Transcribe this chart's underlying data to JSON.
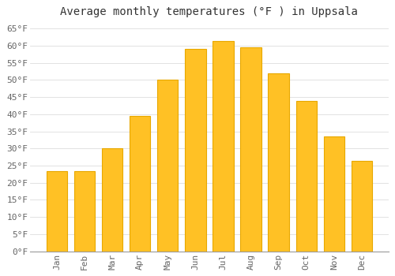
{
  "title": "Average monthly temperatures (°F ) in Uppsala",
  "months": [
    "Jan",
    "Feb",
    "Mar",
    "Apr",
    "May",
    "Jun",
    "Jul",
    "Aug",
    "Sep",
    "Oct",
    "Nov",
    "Dec"
  ],
  "values": [
    23.5,
    23.5,
    30.0,
    39.5,
    50.0,
    59.0,
    61.5,
    59.5,
    52.0,
    44.0,
    33.5,
    26.5
  ],
  "bar_color": "#FFC125",
  "bar_edge_color": "#E8A800",
  "background_color": "#FFFFFF",
  "grid_color": "#DDDDDD",
  "ylim": [
    0,
    67
  ],
  "yticks": [
    0,
    5,
    10,
    15,
    20,
    25,
    30,
    35,
    40,
    45,
    50,
    55,
    60,
    65
  ],
  "ytick_labels": [
    "0°F",
    "5°F",
    "10°F",
    "15°F",
    "20°F",
    "25°F",
    "30°F",
    "35°F",
    "40°F",
    "45°F",
    "50°F",
    "55°F",
    "60°F",
    "65°F"
  ],
  "title_fontsize": 10,
  "tick_fontsize": 8,
  "font_color": "#666666",
  "title_color": "#333333"
}
